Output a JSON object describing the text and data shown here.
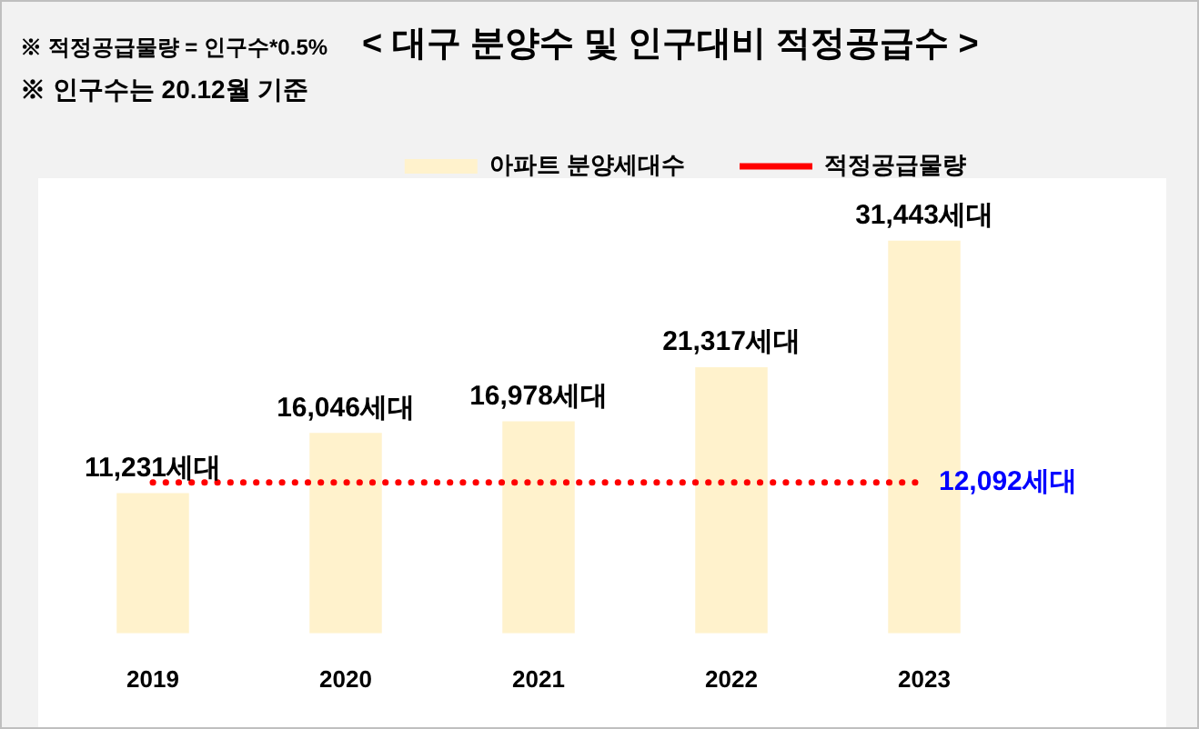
{
  "chart_data": {
    "type": "bar",
    "title": "< 대구 분양수 및 인구대비 적정공급수 >",
    "annotations": [
      "※ 적정공급물량 = 인구수*0.5%",
      "※ 인구수는 20.12월 기준",
      {
        "text": "12,092세대",
        "x": "2023",
        "y": 12092
      }
    ],
    "categories": [
      "2019",
      "2020",
      "2021",
      "2022",
      "2023"
    ],
    "series": [
      {
        "name": "아파트 분양세대수",
        "color": "#fff2cc",
        "values": [
          11231,
          16046,
          16978,
          21317,
          31443
        ],
        "value_labels": [
          "11,231세대",
          "16,046세대",
          "16,978세대",
          "21,317세대",
          "31,443세대"
        ]
      },
      {
        "name": "적정공급물량",
        "type": "line",
        "color": "#ff0000",
        "line_style": "dotted",
        "marker": "none",
        "values": [
          12092,
          12092,
          12092,
          12092,
          12092
        ]
      }
    ],
    "tick_labels": "x",
    "grid": false,
    "legend": "top right"
  }
}
